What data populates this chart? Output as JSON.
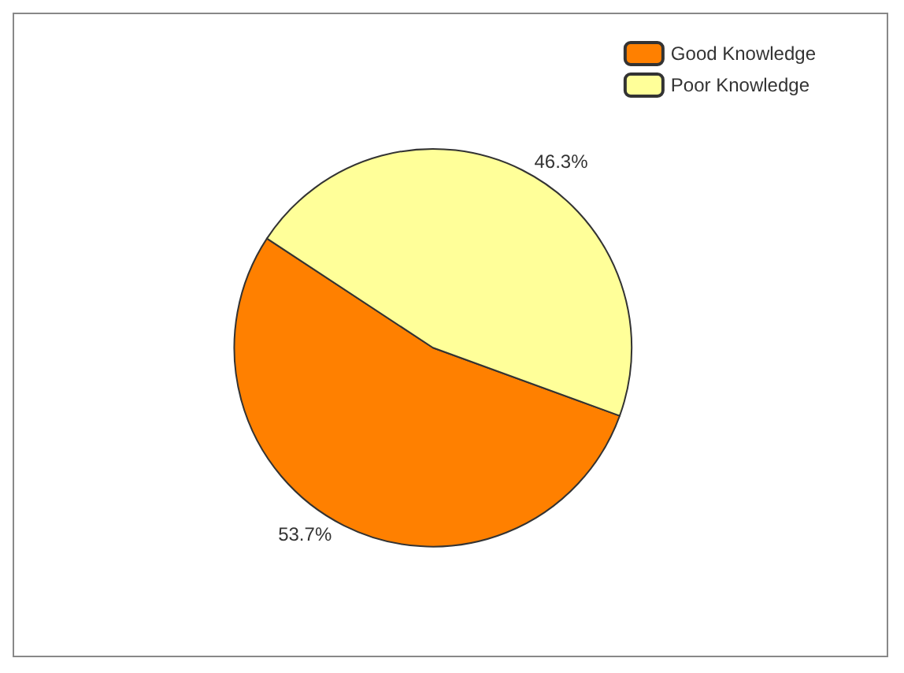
{
  "chart_data": {
    "type": "pie",
    "categories": [
      "Good Knowledge",
      "Poor Knowledge"
    ],
    "values": [
      53.7,
      46.3
    ],
    "colors": [
      "#ff8000",
      "#ffff99"
    ],
    "value_labels": [
      "53.7%",
      "46.3%"
    ],
    "legend": "top right"
  }
}
